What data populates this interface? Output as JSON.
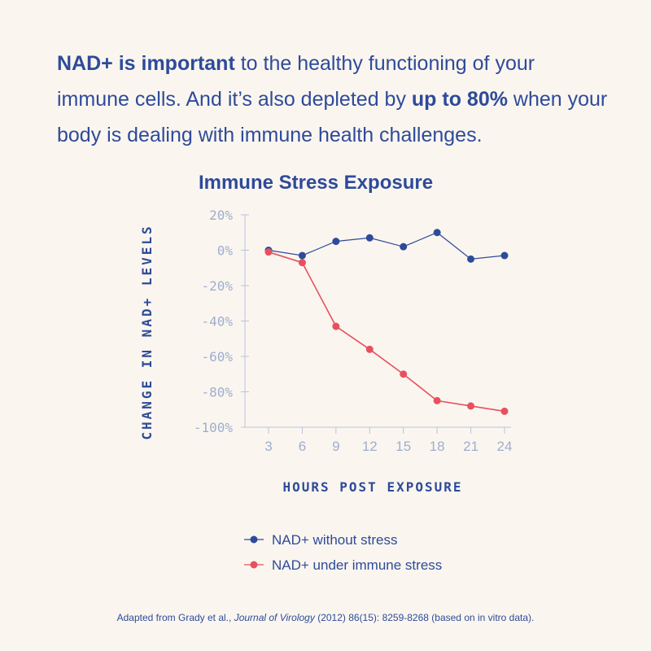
{
  "intro": {
    "p1_bold": "NAD+ is important",
    "p2": " to the healthy functioning of your immune cells. And it’s also depleted by ",
    "p3_bold": "up to 80%",
    "p4": " when your body is dealing with immune health challenges."
  },
  "colors": {
    "text": "#2e4a9a",
    "axis": "#b9c3dc",
    "tick_text": "#9fadd0",
    "series_blue": "#2e4a9a",
    "series_red": "#e8505f",
    "background": "#faf6ef"
  },
  "chart_data": {
    "type": "line",
    "title": "Immune Stress Exposure",
    "xlabel": "HOURS POST EXPOSURE",
    "ylabel": "CHANGE IN NAD+ LEVELS",
    "x": [
      3,
      6,
      9,
      12,
      15,
      18,
      21,
      24
    ],
    "x_tick_labels": [
      "3",
      "6",
      "9",
      "12",
      "15",
      "18",
      "21",
      "24"
    ],
    "y_ticks": [
      20,
      0,
      -20,
      -40,
      -60,
      -80,
      -100
    ],
    "y_tick_labels": [
      "20%",
      "0%",
      "-20%",
      "-40%",
      "-60%",
      "-80%",
      "-100%"
    ],
    "ylim": [
      -100,
      20
    ],
    "series": [
      {
        "name": "NAD+ without stress",
        "color": "#2e4a9a",
        "values": [
          0,
          -3,
          5,
          7,
          2,
          10,
          -5,
          -3
        ]
      },
      {
        "name": "NAD+ under immune stress",
        "color": "#e8505f",
        "values": [
          -1,
          -7,
          -43,
          -56,
          -70,
          -85,
          -88,
          -91
        ]
      }
    ]
  },
  "footnote": {
    "pre": "Adapted from Grady et al., ",
    "journal": "Journal of Virology",
    "post": " (2012) 86(15): 8259-8268 (based on in vitro data)."
  }
}
